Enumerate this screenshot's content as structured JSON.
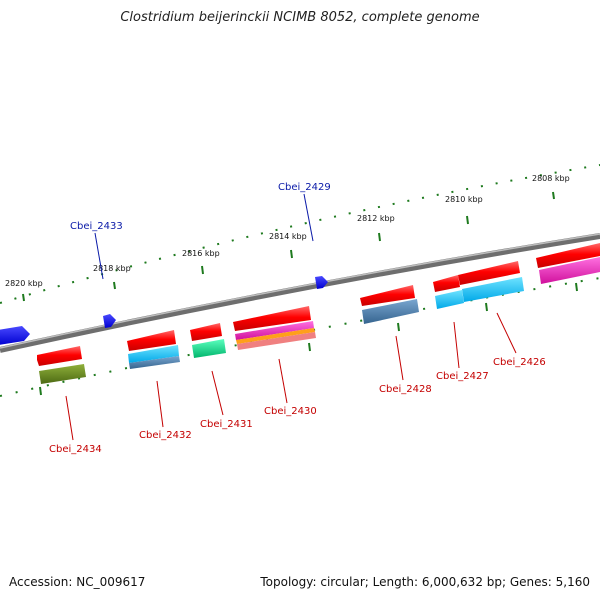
{
  "title": "Clostridium beijerinckii NCIMB 8052, complete genome",
  "footer": {
    "accession": "Accession: NC_009617",
    "topology": "Topology: circular; Length: 6,000,632 bp; Genes: 5,160"
  },
  "scale_labels": [
    {
      "text": "2820 kbp",
      "pos_kbp": 2820
    },
    {
      "text": "2818 kbp",
      "pos_kbp": 2818
    },
    {
      "text": "2816 kbp",
      "pos_kbp": 2816
    },
    {
      "text": "2814 kbp",
      "pos_kbp": 2814
    },
    {
      "text": "2812 kbp",
      "pos_kbp": 2812
    },
    {
      "text": "2810 kbp",
      "pos_kbp": 2810
    },
    {
      "text": "2808 kbp",
      "pos_kbp": 2808
    }
  ],
  "genes": [
    {
      "label": "Cbei_2434",
      "strand": "reverse",
      "color": "#6b8e23"
    },
    {
      "label": "Cbei_2433",
      "strand": "forward",
      "color": "#1a1aff"
    },
    {
      "label": "Cbei_2432",
      "strand": "reverse",
      "color": "#00bfff"
    },
    {
      "label": "Cbei_2431",
      "strand": "reverse",
      "color": "#00e68a"
    },
    {
      "label": "Cbei_2430",
      "strand": "reverse",
      "color": "#ff33cc"
    },
    {
      "label": "Cbei_2429",
      "strand": "forward",
      "color": "#1a1aff"
    },
    {
      "label": "Cbei_2428",
      "strand": "reverse",
      "color": "#4682b4"
    },
    {
      "label": "Cbei_2427",
      "strand": "reverse",
      "color": "#00bfff"
    },
    {
      "label": "Cbei_2426",
      "strand": "reverse",
      "color": "#00bfff"
    }
  ],
  "colors": {
    "backbone": "#808080",
    "cds": "#ff0000",
    "forward_gene": "#1a1aff",
    "tick": "#1e7a1e",
    "reverse_label": "#c40000",
    "forward_label": "#0a1aa8"
  }
}
